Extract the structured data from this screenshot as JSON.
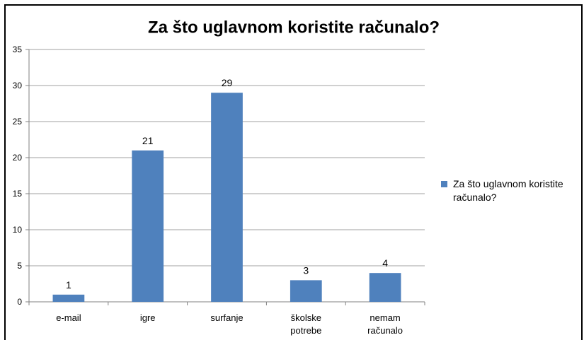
{
  "chart_data": {
    "type": "bar",
    "title": "Za što uglavnom koristite računalo?",
    "categories": [
      "e-mail",
      "igre",
      "surfanje",
      "školske potrebe",
      "nemam računalo"
    ],
    "series": [
      {
        "name": "Za što uglavnom koristite računalo?",
        "color": "#4f81bd",
        "values": [
          1,
          21,
          29,
          3,
          4
        ]
      }
    ],
    "ylim": [
      0,
      35
    ],
    "yticks": [
      0,
      5,
      10,
      15,
      20,
      25,
      30,
      35
    ],
    "grid": true,
    "legend": "right"
  }
}
